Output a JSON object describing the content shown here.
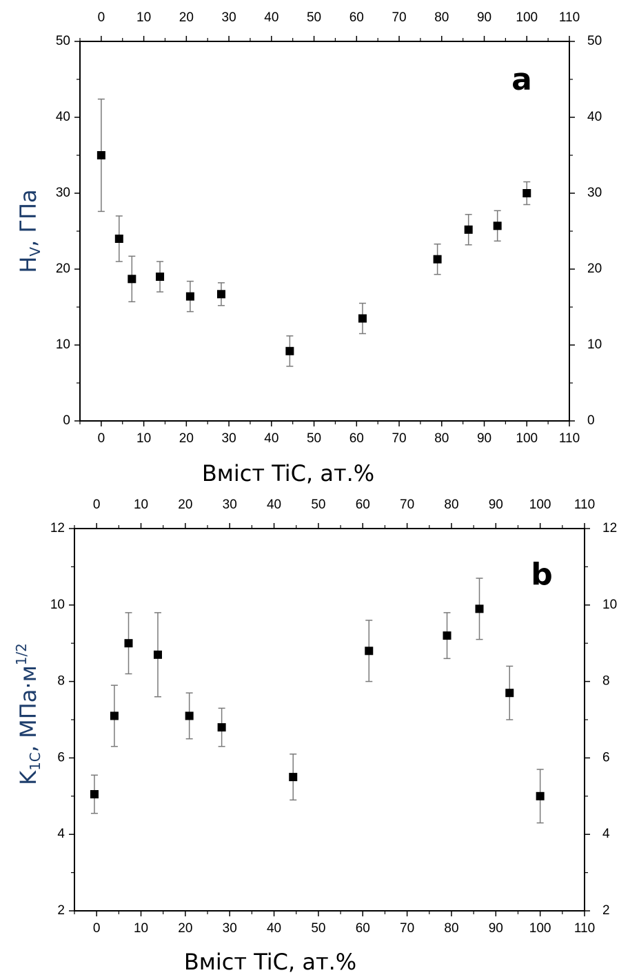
{
  "chart_data": [
    {
      "type": "scatter",
      "panel_label": "a",
      "title": "",
      "xlabel": "Вміст TiC, ат.%",
      "ylabel": "Hv, ГПа",
      "ylabel_main": "H",
      "ylabel_sub": "V",
      "ylabel_rest": ", ГПа",
      "xlim": [
        -5,
        110
      ],
      "ylim": [
        0,
        50
      ],
      "x_ticks": [
        0,
        10,
        20,
        30,
        40,
        50,
        60,
        70,
        80,
        90,
        100,
        110
      ],
      "y_ticks": [
        0,
        10,
        20,
        30,
        40,
        50
      ],
      "grid": false,
      "legend": "none",
      "marker_color": "#000000",
      "errorbar_color": "#7a7a7a",
      "series": [
        {
          "points": [
            {
              "x": 0,
              "y": 35.0,
              "yerr": 7.4
            },
            {
              "x": 4.2,
              "y": 24.0,
              "yerr": 3.0
            },
            {
              "x": 7.2,
              "y": 18.7,
              "yerr": 3.0
            },
            {
              "x": 13.8,
              "y": 19.0,
              "yerr": 2.0
            },
            {
              "x": 20.9,
              "y": 16.4,
              "yerr": 2.0
            },
            {
              "x": 28.2,
              "y": 16.7,
              "yerr": 1.5
            },
            {
              "x": 44.3,
              "y": 9.2,
              "yerr": 2.0
            },
            {
              "x": 61.4,
              "y": 13.5,
              "yerr": 2.0
            },
            {
              "x": 79.0,
              "y": 21.3,
              "yerr": 2.0
            },
            {
              "x": 86.3,
              "y": 25.2,
              "yerr": 2.0
            },
            {
              "x": 93.1,
              "y": 25.7,
              "yerr": 2.0
            },
            {
              "x": 100.0,
              "y": 30.0,
              "yerr": 1.5
            }
          ]
        }
      ]
    },
    {
      "type": "scatter",
      "panel_label": "b",
      "title": "",
      "xlabel": "Вміст TiC, ат.%",
      "ylabel": "K1C, МПа·м1/2",
      "ylabel_main": "K",
      "ylabel_sub": "1C",
      "ylabel_rest": ", МПа·м",
      "ylabel_sup": "1/2",
      "xlim": [
        -5,
        110
      ],
      "ylim": [
        2,
        12
      ],
      "x_ticks": [
        0,
        10,
        20,
        30,
        40,
        50,
        60,
        70,
        80,
        90,
        100,
        110
      ],
      "y_ticks": [
        2,
        4,
        6,
        8,
        10,
        12
      ],
      "grid": false,
      "legend": "none",
      "marker_color": "#000000",
      "errorbar_color": "#7a7a7a",
      "series": [
        {
          "points": [
            {
              "x": -0.5,
              "y": 5.05,
              "yerr": 0.5
            },
            {
              "x": 4.0,
              "y": 7.1,
              "yerr": 0.8
            },
            {
              "x": 7.2,
              "y": 9.0,
              "yerr": 0.8
            },
            {
              "x": 13.8,
              "y": 8.7,
              "yerr": 1.1
            },
            {
              "x": 20.9,
              "y": 7.1,
              "yerr": 0.6
            },
            {
              "x": 28.2,
              "y": 6.8,
              "yerr": 0.5
            },
            {
              "x": 44.3,
              "y": 5.5,
              "yerr": 0.6
            },
            {
              "x": 61.4,
              "y": 8.8,
              "yerr": 0.8
            },
            {
              "x": 79.0,
              "y": 9.2,
              "yerr": 0.6
            },
            {
              "x": 86.3,
              "y": 9.9,
              "yerr": 0.8
            },
            {
              "x": 93.1,
              "y": 7.7,
              "yerr": 0.7
            },
            {
              "x": 100.0,
              "y": 5.0,
              "yerr": 0.7
            }
          ]
        }
      ]
    }
  ]
}
